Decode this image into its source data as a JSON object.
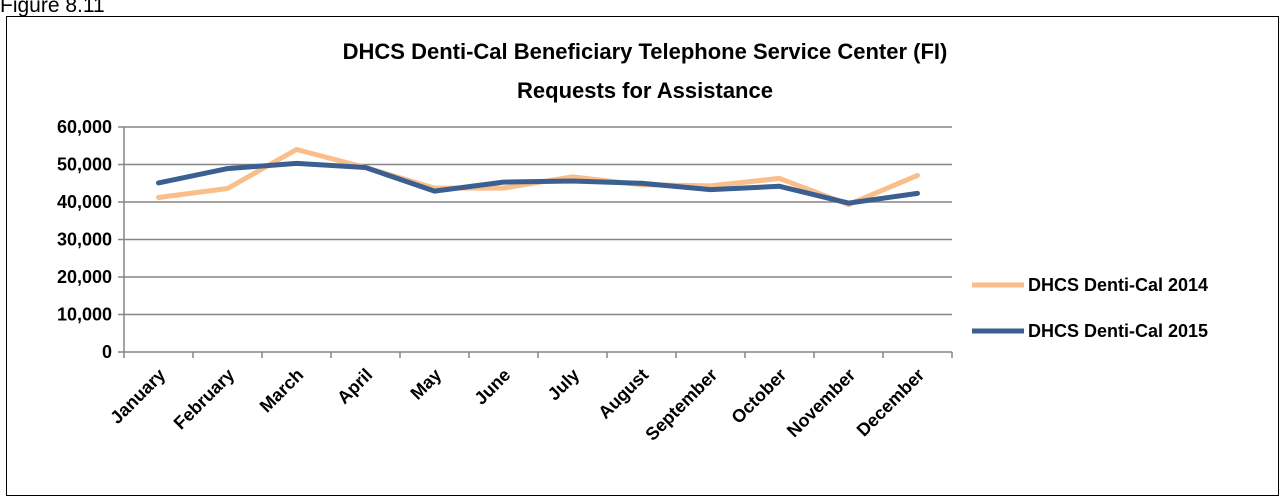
{
  "figure_caption": "Figure 8.11",
  "chart_data": {
    "type": "line",
    "title": "DHCS Denti-Cal  Beneficiary Telephone Service Center (FI)",
    "subtitle": "Requests for Assistance",
    "xlabel": "",
    "ylabel": "",
    "ylim": [
      0,
      60000
    ],
    "yticks": [
      "60,000",
      "50,000",
      "40,000",
      "30,000",
      "20,000",
      "10,000",
      "0"
    ],
    "grid": true,
    "legend_position": "right",
    "categories": [
      "January",
      "February",
      "March",
      "April",
      "May",
      "June",
      "July",
      "August",
      "September",
      "October",
      "November",
      "December"
    ],
    "series": [
      {
        "name": "DHCS Denti-Cal 2014",
        "color": "#F9BE8A",
        "values": [
          41200,
          43600,
          54000,
          49200,
          43700,
          43700,
          46700,
          44600,
          44300,
          46300,
          39300,
          47100
        ]
      },
      {
        "name": "DHCS Denti-Cal 2015",
        "color": "#3A5F90",
        "values": [
          45100,
          48900,
          50300,
          49200,
          42900,
          45300,
          45600,
          45000,
          43300,
          44200,
          39700,
          42300
        ]
      }
    ]
  }
}
